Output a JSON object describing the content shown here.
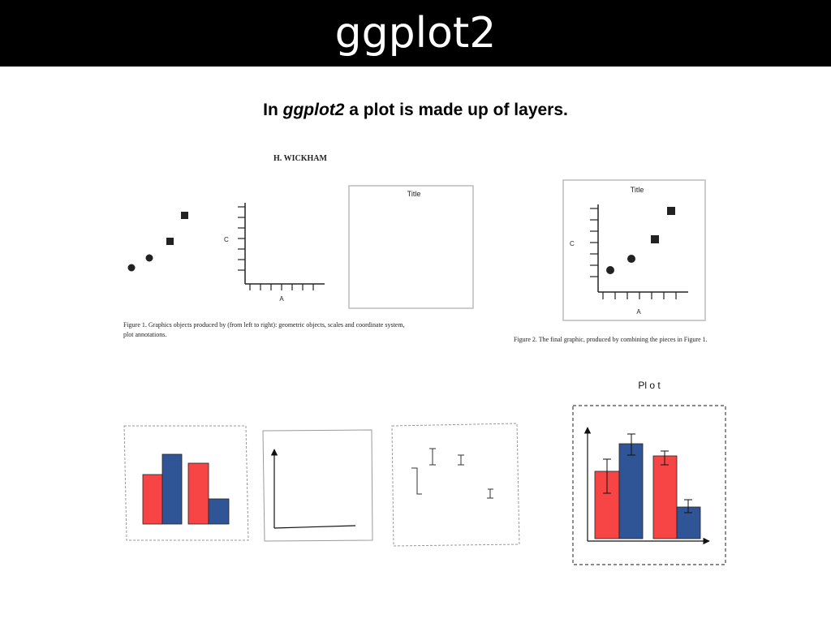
{
  "slide": {
    "title": "ggplot2",
    "subtitle_pre": "In ",
    "subtitle_em": "ggplot2",
    "subtitle_post": " a plot is made up of layers."
  },
  "paper_figure": {
    "author": "H. WICKHAM",
    "panel_title": "Title",
    "axis_x": "A",
    "axis_y": "C",
    "figure1_caption_line1": "Figure 1.   Graphics objects produced by (from left to right): geometric objects, scales and coordinate system,",
    "figure1_caption_line2": "plot annotations.",
    "figure2_caption": "Figure 2.   The final graphic, produced by combining the pieces in Figure 1."
  },
  "layers_diagram": {
    "plot_label": "Pl o t",
    "colors": {
      "red": "#f74545",
      "blue": "#2f5596",
      "dash": "#888888"
    }
  }
}
